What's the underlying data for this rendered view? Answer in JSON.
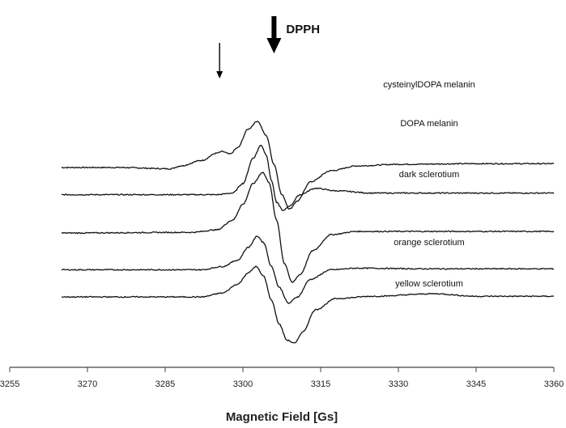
{
  "chart_data": {
    "type": "line",
    "title": "",
    "xlabel": "Magnetic Field [Gs]",
    "ylabel": "",
    "xlim": [
      3255,
      3360
    ],
    "x_ticks": [
      3255,
      3270,
      3285,
      3300,
      3315,
      3330,
      3345,
      3360
    ],
    "grid": false,
    "legend": "none",
    "x_range_measured": [
      3265,
      3360
    ],
    "series": [
      {
        "name": "cysteinylDOPA melanin",
        "baseline": 4.05,
        "points": [
          [
            3265,
            0
          ],
          [
            3276,
            0
          ],
          [
            3286,
            -0.04
          ],
          [
            3288,
            0.05
          ],
          [
            3292,
            0.22
          ],
          [
            3295,
            0.45
          ],
          [
            3296,
            0.5
          ],
          [
            3297.5,
            0.42
          ],
          [
            3299,
            0.62
          ],
          [
            3301,
            1.2
          ],
          [
            3302.8,
            1.45
          ],
          [
            3304.5,
            1.0
          ],
          [
            3306,
            0.1
          ],
          [
            3307.5,
            -0.85
          ],
          [
            3309,
            -1.3
          ],
          [
            3310.5,
            -1.05
          ],
          [
            3313,
            -0.45
          ],
          [
            3317,
            -0.1
          ],
          [
            3322,
            0.05
          ],
          [
            3330,
            0.1
          ],
          [
            3345,
            0.12
          ],
          [
            3360,
            0.12
          ]
        ]
      },
      {
        "name": "DOPA melanin",
        "baseline": 3.2,
        "points": [
          [
            3265,
            0
          ],
          [
            3295,
            0
          ],
          [
            3298,
            0.05
          ],
          [
            3300,
            0.35
          ],
          [
            3302,
            1.15
          ],
          [
            3303.5,
            1.55
          ],
          [
            3304.5,
            1.25
          ],
          [
            3305.5,
            0.45
          ],
          [
            3306.5,
            -0.25
          ],
          [
            3307.8,
            -0.5
          ],
          [
            3309,
            -0.35
          ],
          [
            3311,
            0
          ],
          [
            3314,
            0.2
          ],
          [
            3318,
            0.12
          ],
          [
            3325,
            0.05
          ],
          [
            3340,
            0.05
          ],
          [
            3360,
            0.05
          ]
        ]
      },
      {
        "name": "dark sclerotium",
        "baseline": 2.0,
        "points": [
          [
            3265,
            0
          ],
          [
            3290,
            0.02
          ],
          [
            3295,
            0.1
          ],
          [
            3298,
            0.4
          ],
          [
            3300,
            0.9
          ],
          [
            3302,
            1.55
          ],
          [
            3303.8,
            1.9
          ],
          [
            3305,
            1.6
          ],
          [
            3306.5,
            0.4
          ],
          [
            3308,
            -0.95
          ],
          [
            3309.5,
            -1.55
          ],
          [
            3311,
            -1.3
          ],
          [
            3313.5,
            -0.55
          ],
          [
            3317,
            -0.05
          ],
          [
            3322,
            0.05
          ],
          [
            3330,
            0.05
          ],
          [
            3345,
            0.05
          ],
          [
            3360,
            0.05
          ]
        ]
      },
      {
        "name": "orange sclerotium",
        "baseline": 0.85,
        "points": [
          [
            3265,
            0
          ],
          [
            3292,
            0
          ],
          [
            3296,
            0.1
          ],
          [
            3299,
            0.3
          ],
          [
            3301,
            0.7
          ],
          [
            3302.8,
            1.05
          ],
          [
            3304,
            0.85
          ],
          [
            3305.5,
            0.1
          ],
          [
            3307,
            -0.55
          ],
          [
            3308.8,
            -1.05
          ],
          [
            3310.5,
            -0.85
          ],
          [
            3313,
            -0.3
          ],
          [
            3317,
            0
          ],
          [
            3322,
            0.05
          ],
          [
            3335,
            0.03
          ],
          [
            3360,
            0.03
          ]
        ]
      },
      {
        "name": "yellow sclerotium",
        "baseline": 0,
        "points": [
          [
            3265,
            0
          ],
          [
            3292,
            0
          ],
          [
            3296,
            0.12
          ],
          [
            3299,
            0.4
          ],
          [
            3301,
            0.75
          ],
          [
            3302.5,
            0.95
          ],
          [
            3304,
            0.65
          ],
          [
            3305.5,
            -0.1
          ],
          [
            3307,
            -0.85
          ],
          [
            3308.5,
            -1.35
          ],
          [
            3310,
            -1.45
          ],
          [
            3311.5,
            -1.1
          ],
          [
            3314,
            -0.4
          ],
          [
            3318,
            -0.05
          ],
          [
            3325,
            0.02
          ],
          [
            3337,
            0.1
          ],
          [
            3345,
            0.02
          ],
          [
            3360,
            0.02
          ]
        ]
      }
    ],
    "annotations": [
      {
        "text": "DPPH",
        "x": 3306,
        "arrow": "thick",
        "label_visible": true
      },
      {
        "text": "",
        "x": 3295.5,
        "arrow": "thin",
        "label_visible": false
      }
    ]
  }
}
